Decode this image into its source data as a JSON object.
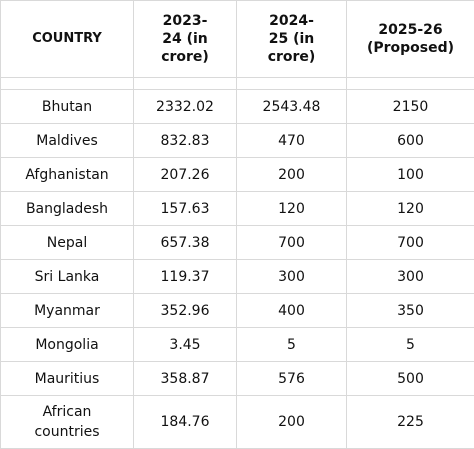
{
  "table": {
    "headers": [
      {
        "line1": "COUNTRY",
        "line2": "",
        "line3": ""
      },
      {
        "line1": "2023-",
        "line2": "24 (in",
        "line3": "crore)"
      },
      {
        "line1": "2024-",
        "line2": "25 (in",
        "line3": "crore)"
      },
      {
        "line1": "2025-26",
        "line2": "(Proposed)",
        "line3": ""
      }
    ],
    "rows": [
      {
        "country": "Bhutan",
        "country_line2": "",
        "y2023": "2332.02",
        "y2024": "2543.48",
        "y2025": "2150"
      },
      {
        "country": "Maldives",
        "country_line2": "",
        "y2023": "832.83",
        "y2024": "470",
        "y2025": "600"
      },
      {
        "country": "Afghanistan",
        "country_line2": "",
        "y2023": "207.26",
        "y2024": "200",
        "y2025": "100"
      },
      {
        "country": "Bangladesh",
        "country_line2": "",
        "y2023": "157.63",
        "y2024": "120",
        "y2025": "120"
      },
      {
        "country": "Nepal",
        "country_line2": "",
        "y2023": "657.38",
        "y2024": "700",
        "y2025": "700"
      },
      {
        "country": "Sri Lanka",
        "country_line2": "",
        "y2023": "119.37",
        "y2024": "300",
        "y2025": "300"
      },
      {
        "country": "Myanmar",
        "country_line2": "",
        "y2023": "352.96",
        "y2024": "400",
        "y2025": "350"
      },
      {
        "country": "Mongolia",
        "country_line2": "",
        "y2023": "3.45",
        "y2024": "5",
        "y2025": "5"
      },
      {
        "country": "Mauritius",
        "country_line2": "",
        "y2023": "358.87",
        "y2024": "576",
        "y2025": "500"
      },
      {
        "country": "African",
        "country_line2": "countries",
        "y2023": "184.76",
        "y2024": "200",
        "y2025": "225"
      }
    ]
  }
}
